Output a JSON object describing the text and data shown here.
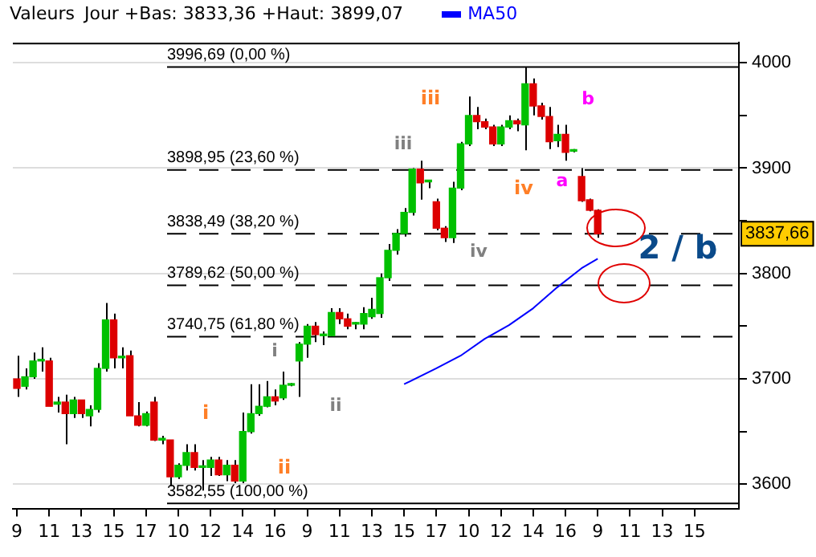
{
  "chart_data": {
    "type": "candlestick",
    "title": "Valeurs",
    "subtitle": "Jour +Bas: 3833,36 +Haut: 3899,07",
    "legend": "top",
    "grid": "y",
    "categories": [
      "9",
      null,
      null,
      null,
      "11",
      null,
      null,
      null,
      "13",
      null,
      null,
      null,
      "15",
      null,
      null,
      null,
      "17",
      null,
      null,
      null,
      "10",
      null,
      null,
      null,
      "12",
      null,
      null,
      null,
      "14",
      null,
      null,
      null,
      "16",
      null,
      null,
      null,
      "9",
      null,
      null,
      null,
      "11",
      null,
      null,
      null,
      "13",
      null,
      null,
      null,
      "15",
      null,
      null,
      null,
      "17",
      null,
      null,
      null,
      "10",
      null,
      null,
      null,
      "12",
      null,
      null,
      null,
      "14",
      null,
      null,
      null,
      "16",
      null,
      null,
      null,
      "9",
      null,
      null,
      null,
      "11",
      null,
      null,
      null,
      "13",
      null,
      null,
      null,
      "15",
      null,
      null,
      null,
      null,
      null
    ],
    "ylim": [
      3577,
      4019
    ],
    "yticks": [
      3600,
      {
        "value": 3650,
        "label": null
      },
      3700,
      {
        "value": 3750,
        "label": null
      },
      3800,
      {
        "value": 3850,
        "label": null
      },
      3900,
      {
        "value": 3950,
        "label": null
      },
      4000
    ],
    "series": [
      {
        "ohlc": [
          [
            3700,
            3722,
            3683,
            3691
          ],
          [
            3693,
            3710,
            3690,
            3702
          ],
          [
            3702,
            3725,
            3700,
            3717
          ],
          [
            3717,
            3730,
            3707,
            3718
          ],
          [
            3717,
            3720,
            3674,
            3674
          ],
          [
            3676,
            3683,
            3668,
            3678
          ],
          [
            3678,
            3685,
            3638,
            3667
          ],
          [
            3667,
            3683,
            3663,
            3680
          ],
          [
            3680,
            3680,
            3663,
            3667
          ],
          [
            3665,
            3675,
            3655,
            3671
          ],
          [
            3671,
            3715,
            3668,
            3710
          ],
          [
            3710,
            3772,
            3707,
            3756
          ],
          [
            3756,
            3762,
            3710,
            3720
          ],
          [
            3720,
            3730,
            3710,
            3721
          ],
          [
            3722,
            3727,
            3665,
            3665
          ],
          [
            3665,
            3678,
            3655,
            3656
          ],
          [
            3656,
            3669,
            3655,
            3667
          ],
          [
            3678,
            3683,
            3641,
            3642
          ],
          [
            3642,
            3646,
            3638,
            3643
          ],
          [
            3642,
            3642,
            3598,
            3607
          ],
          [
            3607,
            3620,
            3605,
            3618
          ],
          [
            3618,
            3638,
            3613,
            3630
          ],
          [
            3630,
            3638,
            3613,
            3616
          ],
          [
            3616,
            3623,
            3594,
            3617
          ],
          [
            3616,
            3626,
            3608,
            3623
          ],
          [
            3623,
            3626,
            3608,
            3609
          ],
          [
            3609,
            3623,
            3603,
            3618
          ],
          [
            3618,
            3623,
            3601,
            3603
          ],
          [
            3603,
            3668,
            3601,
            3650
          ],
          [
            3650,
            3695,
            3648,
            3667
          ],
          [
            3667,
            3695,
            3665,
            3674
          ],
          [
            3674,
            3698,
            3673,
            3683
          ],
          [
            3683,
            3690,
            3675,
            3679
          ],
          [
            3682,
            3707,
            3680,
            3694
          ],
          [
            3694,
            3696,
            3693,
            3695
          ],
          [
            3717,
            3735,
            3683,
            3733
          ],
          [
            3733,
            3752,
            3720,
            3750
          ],
          [
            3750,
            3754,
            3735,
            3742
          ],
          [
            3741,
            3745,
            3732,
            3742
          ],
          [
            3741,
            3767,
            3740,
            3763
          ],
          [
            3763,
            3767,
            3752,
            3757
          ],
          [
            3757,
            3762,
            3747,
            3750
          ],
          [
            3752,
            3754,
            3747,
            3753
          ],
          [
            3752,
            3768,
            3747,
            3762
          ],
          [
            3759,
            3777,
            3757,
            3766
          ],
          [
            3762,
            3800,
            3758,
            3796
          ],
          [
            3796,
            3828,
            3793,
            3822
          ],
          [
            3822,
            3842,
            3818,
            3838
          ],
          [
            3838,
            3862,
            3835,
            3858
          ],
          [
            3858,
            3900,
            3855,
            3899
          ],
          [
            3899,
            3907,
            3870,
            3886
          ],
          [
            3887,
            3889,
            3881,
            3888
          ],
          [
            3868,
            3871,
            3841,
            3843
          ],
          [
            3843,
            3845,
            3830,
            3834
          ],
          [
            3834,
            3887,
            3829,
            3881
          ],
          [
            3881,
            3925,
            3879,
            3923
          ],
          [
            3923,
            3968,
            3921,
            3950
          ],
          [
            3950,
            3958,
            3937,
            3944
          ],
          [
            3944,
            3947,
            3937,
            3939
          ],
          [
            3939,
            3941,
            3921,
            3923
          ],
          [
            3923,
            3941,
            3921,
            3939
          ],
          [
            3939,
            3950,
            3937,
            3945
          ],
          [
            3945,
            3947,
            3935,
            3942
          ],
          [
            3941,
            3996,
            3917,
            3980
          ],
          [
            3980,
            3985,
            3950,
            3959
          ],
          [
            3959,
            3962,
            3946,
            3949
          ],
          [
            3949,
            3958,
            3918,
            3925
          ],
          [
            3926,
            3941,
            3920,
            3932
          ],
          [
            3932,
            3941,
            3907,
            3915
          ],
          [
            3916,
            3918,
            3915,
            3917
          ],
          [
            3892,
            3900,
            3868,
            3869
          ],
          [
            3870,
            3871,
            3859,
            3860
          ],
          [
            3860,
            3861,
            3834,
            3837.66
          ],
          null,
          null,
          null,
          null,
          null,
          null,
          null,
          null,
          null,
          null,
          null,
          null,
          null,
          null,
          null,
          null,
          null
        ],
        "colors": [
          "#dd0000",
          "#00c000",
          "#00c000",
          "#00c000",
          "#dd0000",
          "#00c000",
          "#dd0000",
          "#00c000",
          "#dd0000",
          "#00c000",
          "#00c000",
          "#00c000",
          "#dd0000",
          "#00c000",
          "#dd0000",
          "#dd0000",
          "#00c000",
          "#dd0000",
          "#00c000",
          "#dd0000",
          "#00c000",
          "#00c000",
          "#dd0000",
          "#00c000",
          "#00c000",
          "#dd0000",
          "#00c000",
          "#dd0000",
          "#00c000",
          "#00c000",
          "#00c000",
          "#00c000",
          "#dd0000",
          "#00c000",
          "#00c000",
          "#00c000",
          "#00c000",
          "#dd0000",
          "#00c000",
          "#00c000",
          "#dd0000",
          "#dd0000",
          "#00c000",
          "#00c000",
          "#00c000",
          "#00c000",
          "#00c000",
          "#00c000",
          "#00c000",
          "#00c000",
          "#dd0000",
          "#00c000",
          "#dd0000",
          "#dd0000",
          "#00c000",
          "#00c000",
          "#00c000",
          "#dd0000",
          "#dd0000",
          "#dd0000",
          "#00c000",
          "#00c000",
          "#dd0000",
          "#00c000",
          "#dd0000",
          "#dd0000",
          "#dd0000",
          "#00c000",
          "#dd0000",
          "#00c000",
          "#dd0000",
          "#dd0000",
          "#dd0000",
          null,
          null,
          null,
          null,
          null,
          null,
          null,
          null,
          null,
          null,
          null,
          null,
          null,
          null,
          null,
          null,
          null
        ]
      },
      {
        "type": "line",
        "name": "MA50",
        "color": "#0000ff",
        "marker": "none",
        "values": [
          null,
          null,
          null,
          null,
          null,
          null,
          null,
          null,
          null,
          null,
          null,
          null,
          null,
          null,
          null,
          null,
          null,
          null,
          null,
          null,
          null,
          null,
          null,
          null,
          null,
          null,
          null,
          null,
          null,
          null,
          null,
          null,
          null,
          null,
          null,
          null,
          null,
          null,
          null,
          null,
          null,
          null,
          null,
          null,
          null,
          null,
          null,
          null,
          3695,
          null,
          null,
          null,
          3710,
          null,
          null,
          3722,
          null,
          null,
          3738,
          null,
          null,
          3751,
          null,
          null,
          3767,
          null,
          null,
          3787,
          null,
          null,
          3805,
          null,
          3814,
          null,
          null,
          null,
          null,
          null,
          null,
          null,
          null,
          null,
          null,
          null,
          null,
          null,
          null,
          null,
          null,
          null
        ]
      }
    ],
    "ref_lines": [
      {
        "axis": "y",
        "value": 3996.69,
        "label": "3996,69 (0,00 %)",
        "line_style": "solid",
        "color": "#000000"
      },
      {
        "axis": "y",
        "value": 3898.95,
        "label": "3898,95 (23,60 %)",
        "line_style": "dashed",
        "color": "#000000"
      },
      {
        "axis": "y",
        "value": 3838.49,
        "label": "3838,49 (38,20 %)",
        "line_style": "dashed",
        "color": "#000000"
      },
      {
        "axis": "y",
        "value": 3789.62,
        "label": "3789,62 (50,00 %)",
        "line_style": "dashed",
        "color": "#000000"
      },
      {
        "axis": "y",
        "value": 3740.75,
        "label": "3740,75 (61,80 %)",
        "line_style": "dashed",
        "color": "#000000"
      },
      {
        "axis": "y",
        "value": 3582.55,
        "label": "3582,55 (100,00 %)",
        "line_style": "solid",
        "color": "#000000"
      }
    ],
    "annotations": [
      "i",
      "ii",
      "iii",
      "iv",
      "a",
      "b",
      "i",
      "ii",
      "iii",
      "iv",
      "2 / b",
      "3837,66"
    ]
  }
}
